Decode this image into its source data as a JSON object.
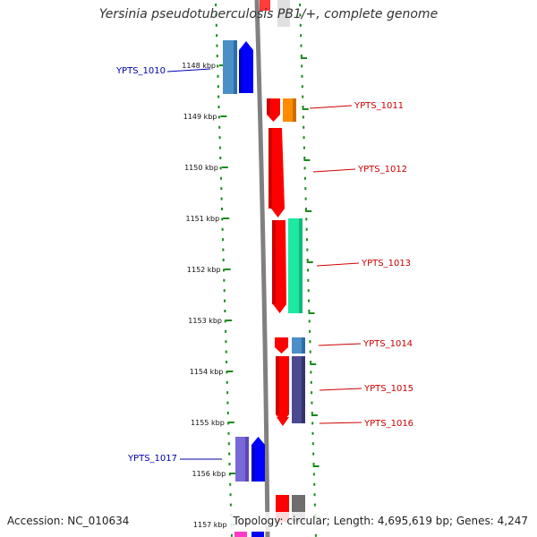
{
  "title": "Yersinia pseudotuberculosis PB1/+, complete genome",
  "footer": {
    "accession": "Accession: NC_010634",
    "topology": "Topology: circular; Length: 4,695,619 bp; Genes: 4,247"
  },
  "colors": {
    "backbone": "#808080",
    "tick_green": "#1a8a1a",
    "label_forward": "#cc0000",
    "label_reverse": "#0000aa"
  },
  "ruler": [
    {
      "label": "1148 kbp"
    },
    {
      "label": "1149 kbp"
    },
    {
      "label": "1150 kbp"
    },
    {
      "label": "1151 kbp"
    },
    {
      "label": "1152 kbp"
    },
    {
      "label": "1153 kbp"
    },
    {
      "label": "1154 kbp"
    },
    {
      "label": "1155 kbp"
    },
    {
      "label": "1156 kbp"
    },
    {
      "label": "1157 kbp"
    }
  ],
  "gene_labels": [
    {
      "id": "YPTS_1010",
      "strand": "reverse"
    },
    {
      "id": "YPTS_1011",
      "strand": "forward"
    },
    {
      "id": "YPTS_1012",
      "strand": "forward"
    },
    {
      "id": "YPTS_1013",
      "strand": "forward"
    },
    {
      "id": "YPTS_1014",
      "strand": "forward"
    },
    {
      "id": "YPTS_1015",
      "strand": "forward"
    },
    {
      "id": "YPTS_1016",
      "strand": "forward"
    },
    {
      "id": "YPTS_1017",
      "strand": "reverse"
    }
  ]
}
